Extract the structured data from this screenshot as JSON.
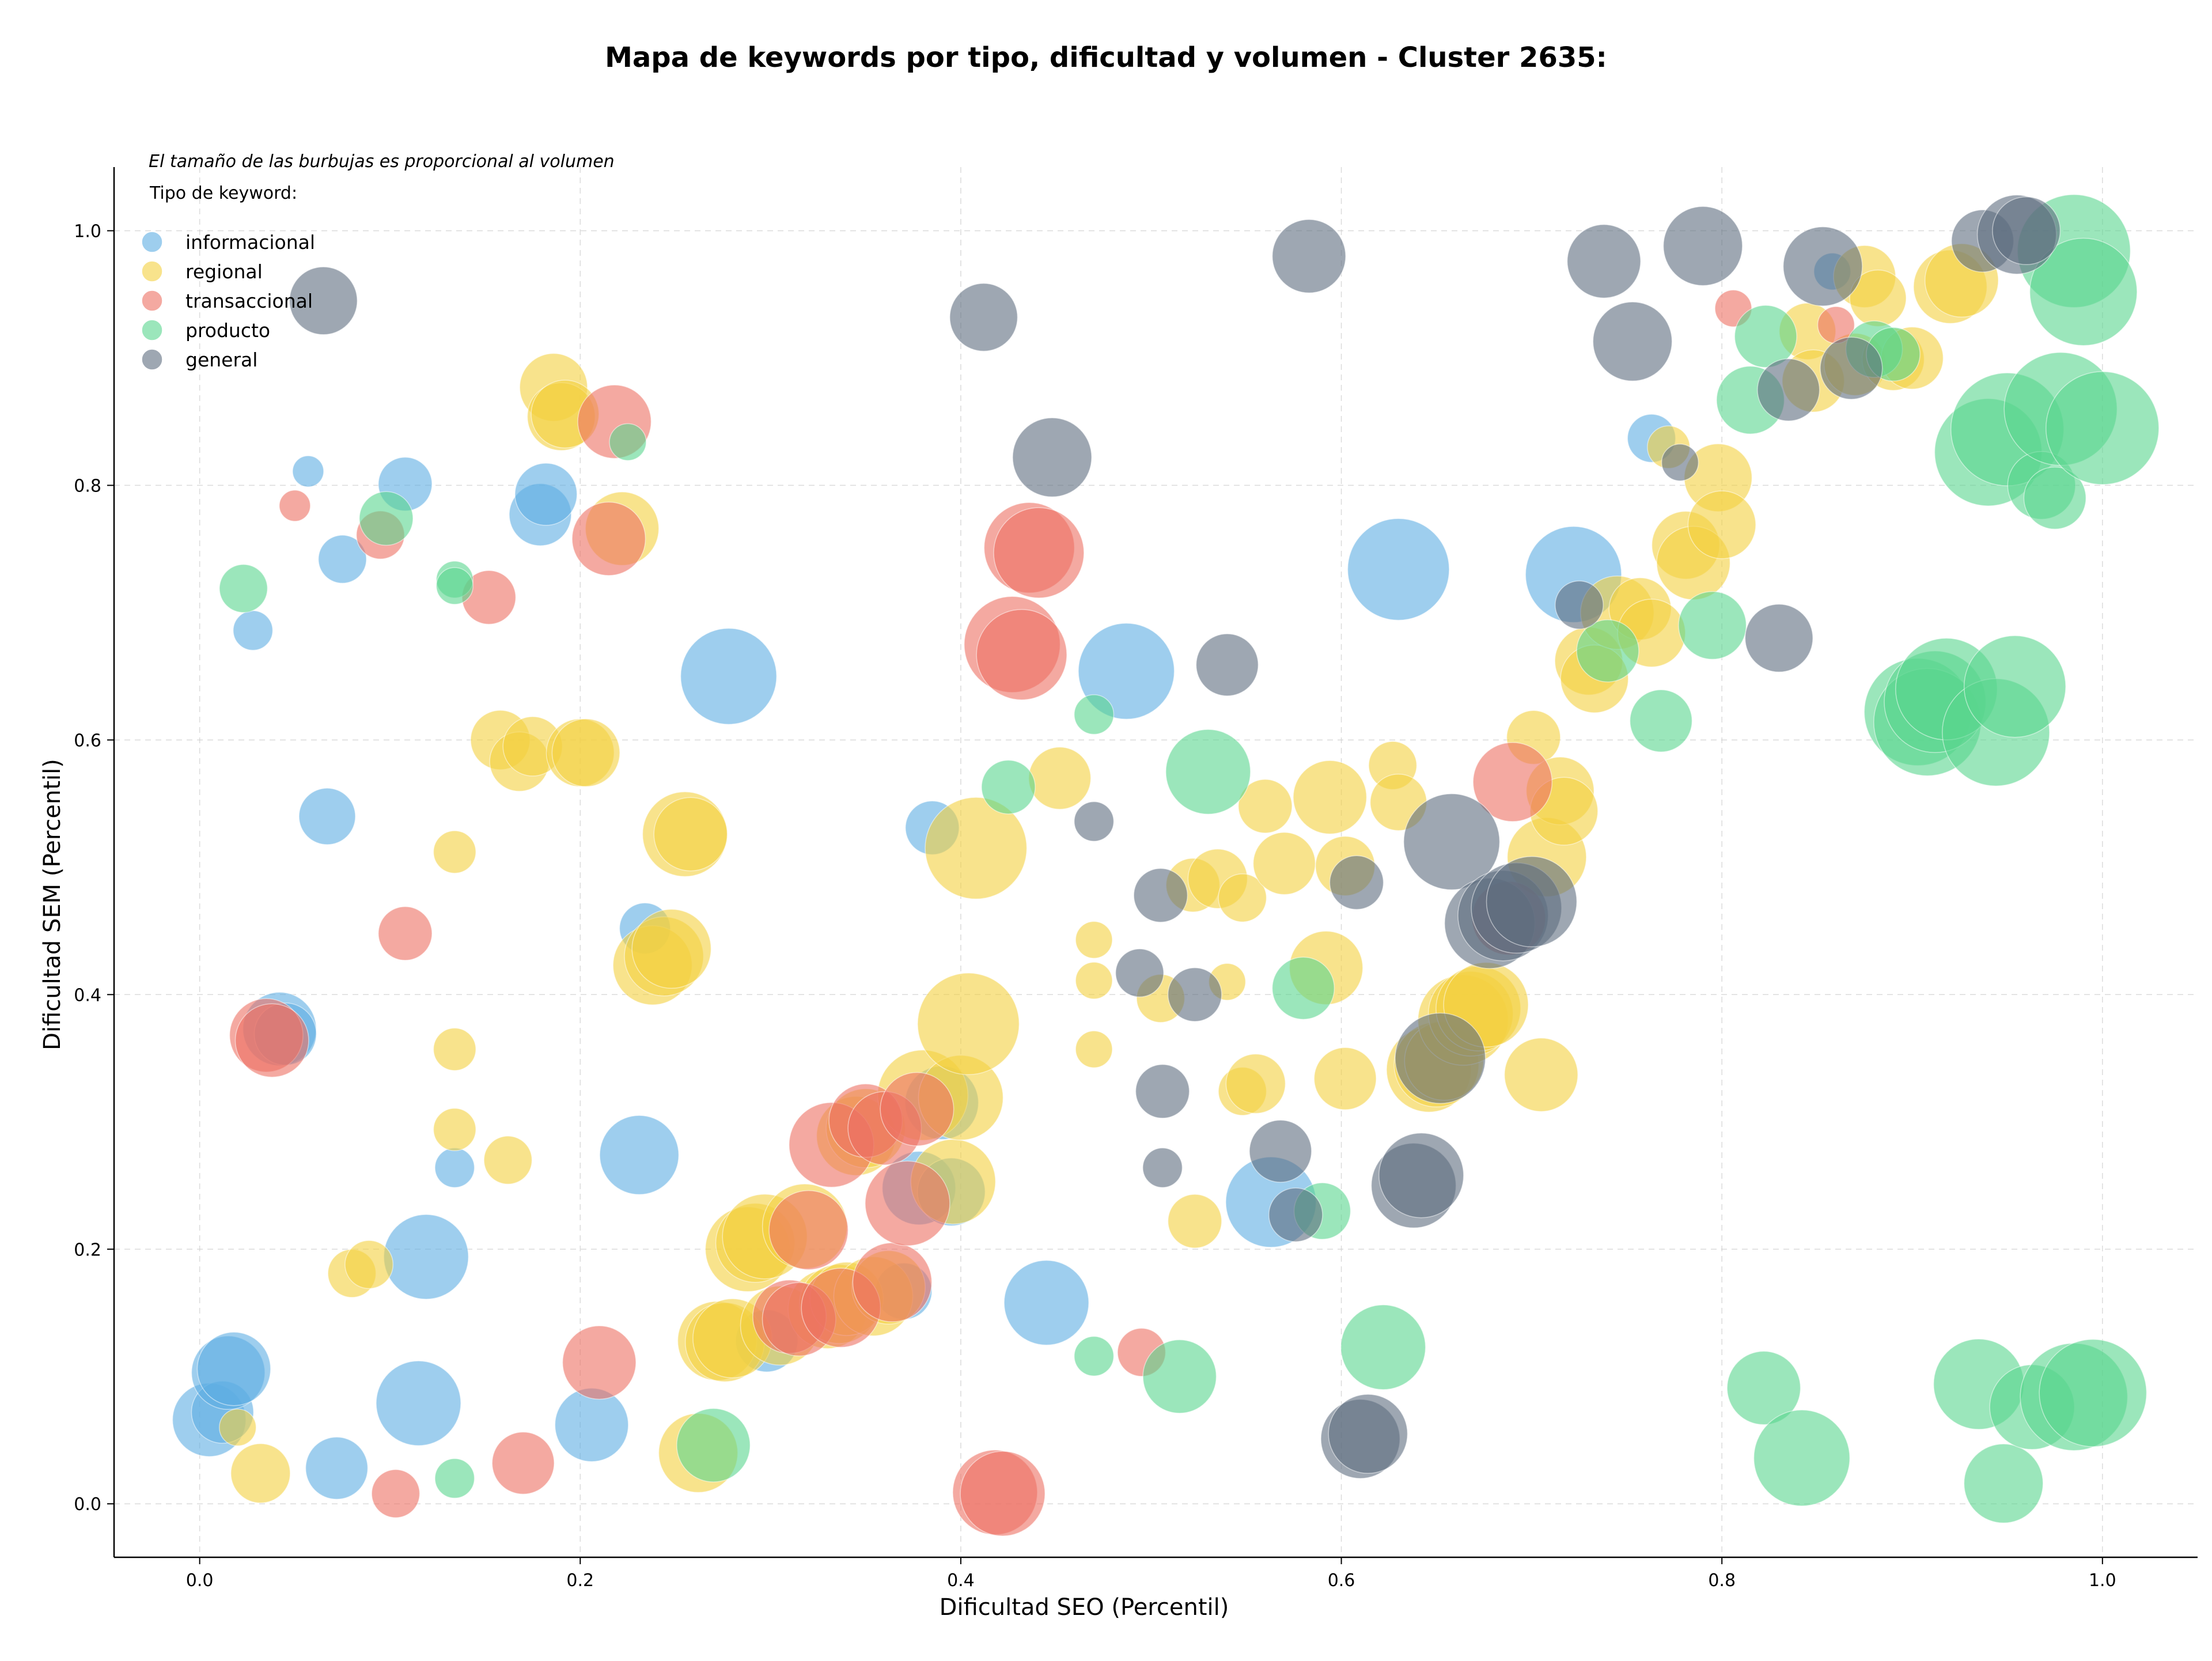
{
  "chart_data": {
    "type": "scatter",
    "title": "Mapa de keywords por tipo, dificultad y volumen - Cluster 2635:",
    "xlabel": "Dificultad SEO (Percentil)",
    "ylabel": "Dificultad SEM (Percentil)",
    "xlim": [
      -0.045,
      1.05
    ],
    "ylim": [
      -0.042,
      1.05
    ],
    "xticks": [
      0.0,
      0.2,
      0.4,
      0.6,
      0.8,
      1.0
    ],
    "yticks": [
      0.0,
      0.2,
      0.4,
      0.6,
      0.8,
      1.0
    ],
    "tick_labels_x": [
      "0.0",
      "0.2",
      "0.4",
      "0.6",
      "0.8",
      "1.0"
    ],
    "tick_labels_y": [
      "0.0",
      "0.2",
      "0.4",
      "0.6",
      "0.8",
      "1.0"
    ],
    "annotation": "El tamaño de las burbujas es proporcional al volumen",
    "legend_title": "Tipo de keyword:",
    "legend_position": "top-left",
    "grid": true,
    "series": [
      {
        "name": "informacional",
        "color": "#5dade2",
        "points": [
          [
            0.005,
            0.066,
            26
          ],
          [
            0.012,
            0.072,
            22
          ],
          [
            0.015,
            0.103,
            26
          ],
          [
            0.018,
            0.106,
            26
          ],
          [
            0.028,
            0.686,
            14
          ],
          [
            0.042,
            0.373,
            26
          ],
          [
            0.045,
            0.369,
            22
          ],
          [
            0.057,
            0.811,
            11
          ],
          [
            0.067,
            0.54,
            20
          ],
          [
            0.072,
            0.028,
            22
          ],
          [
            0.075,
            0.742,
            17
          ],
          [
            0.108,
            0.801,
            19
          ],
          [
            0.115,
            0.079,
            30
          ],
          [
            0.119,
            0.194,
            30
          ],
          [
            0.134,
            0.264,
            14
          ],
          [
            0.179,
            0.777,
            22
          ],
          [
            0.182,
            0.793,
            22
          ],
          [
            0.206,
            0.062,
            26
          ],
          [
            0.231,
            0.274,
            28
          ],
          [
            0.234,
            0.452,
            18
          ],
          [
            0.278,
            0.65,
            34
          ],
          [
            0.298,
            0.128,
            22
          ],
          [
            0.37,
            0.167,
            20
          ],
          [
            0.378,
            0.248,
            26
          ],
          [
            0.385,
            0.531,
            19
          ],
          [
            0.39,
            0.315,
            26
          ],
          [
            0.395,
            0.245,
            24
          ],
          [
            0.445,
            0.158,
            30
          ],
          [
            0.487,
            0.654,
            34
          ],
          [
            0.563,
            0.237,
            32
          ],
          [
            0.63,
            0.734,
            36
          ],
          [
            0.722,
            0.73,
            34
          ],
          [
            0.763,
            0.837,
            17
          ],
          [
            0.858,
            0.968,
            13
          ]
        ]
      },
      {
        "name": "regional",
        "color": "#f4d03f",
        "points": [
          [
            0.02,
            0.06,
            13
          ],
          [
            0.032,
            0.024,
            21
          ],
          [
            0.08,
            0.181,
            17
          ],
          [
            0.089,
            0.188,
            17
          ],
          [
            0.134,
            0.512,
            15
          ],
          [
            0.134,
            0.357,
            15
          ],
          [
            0.134,
            0.294,
            15
          ],
          [
            0.158,
            0.6,
            21
          ],
          [
            0.162,
            0.27,
            17
          ],
          [
            0.168,
            0.583,
            21
          ],
          [
            0.175,
            0.595,
            21
          ],
          [
            0.186,
            0.877,
            24
          ],
          [
            0.19,
            0.854,
            24
          ],
          [
            0.192,
            0.856,
            24
          ],
          [
            0.2,
            0.59,
            24
          ],
          [
            0.203,
            0.59,
            24
          ],
          [
            0.222,
            0.766,
            26
          ],
          [
            0.238,
            0.423,
            28
          ],
          [
            0.244,
            0.43,
            28
          ],
          [
            0.248,
            0.436,
            28
          ],
          [
            0.255,
            0.526,
            30
          ],
          [
            0.258,
            0.526,
            26
          ],
          [
            0.262,
            0.04,
            28
          ],
          [
            0.272,
            0.128,
            28
          ],
          [
            0.276,
            0.127,
            28
          ],
          [
            0.28,
            0.13,
            28
          ],
          [
            0.288,
            0.2,
            30
          ],
          [
            0.292,
            0.205,
            28
          ],
          [
            0.297,
            0.21,
            30
          ],
          [
            0.305,
            0.14,
            28
          ],
          [
            0.318,
            0.218,
            30
          ],
          [
            0.33,
            0.153,
            28
          ],
          [
            0.336,
            0.157,
            28
          ],
          [
            0.34,
            0.161,
            26
          ],
          [
            0.345,
            0.289,
            28
          ],
          [
            0.35,
            0.295,
            28
          ],
          [
            0.354,
            0.163,
            28
          ],
          [
            0.362,
            0.17,
            26
          ],
          [
            0.38,
            0.321,
            32
          ],
          [
            0.396,
            0.253,
            30
          ],
          [
            0.4,
            0.319,
            30
          ],
          [
            0.404,
            0.377,
            36
          ],
          [
            0.408,
            0.515,
            36
          ],
          [
            0.452,
            0.57,
            22
          ],
          [
            0.47,
            0.443,
            13
          ],
          [
            0.47,
            0.411,
            13
          ],
          [
            0.47,
            0.357,
            13
          ],
          [
            0.505,
            0.397,
            17
          ],
          [
            0.522,
            0.486,
            19
          ],
          [
            0.523,
            0.222,
            19
          ],
          [
            0.535,
            0.491,
            21
          ],
          [
            0.54,
            0.41,
            13
          ],
          [
            0.548,
            0.324,
            17
          ],
          [
            0.548,
            0.476,
            17
          ],
          [
            0.555,
            0.33,
            21
          ],
          [
            0.56,
            0.548,
            19
          ],
          [
            0.57,
            0.503,
            22
          ],
          [
            0.592,
            0.421,
            26
          ],
          [
            0.594,
            0.555,
            26
          ],
          [
            0.602,
            0.334,
            22
          ],
          [
            0.602,
            0.501,
            21
          ],
          [
            0.627,
            0.58,
            17
          ],
          [
            0.63,
            0.551,
            20
          ],
          [
            0.646,
            0.341,
            30
          ],
          [
            0.65,
            0.345,
            30
          ],
          [
            0.654,
            0.348,
            28
          ],
          [
            0.664,
            0.38,
            32
          ],
          [
            0.668,
            0.385,
            30
          ],
          [
            0.672,
            0.389,
            30
          ],
          [
            0.676,
            0.392,
            30
          ],
          [
            0.701,
            0.602,
            19
          ],
          [
            0.705,
            0.337,
            26
          ],
          [
            0.708,
            0.508,
            28
          ],
          [
            0.715,
            0.56,
            24
          ],
          [
            0.717,
            0.544,
            24
          ],
          [
            0.73,
            0.662,
            24
          ],
          [
            0.733,
            0.648,
            24
          ],
          [
            0.745,
            0.7,
            26
          ],
          [
            0.757,
            0.703,
            22
          ],
          [
            0.763,
            0.684,
            24
          ],
          [
            0.772,
            0.83,
            15
          ],
          [
            0.781,
            0.753,
            24
          ],
          [
            0.785,
            0.739,
            26
          ],
          [
            0.798,
            0.806,
            24
          ],
          [
            0.8,
            0.769,
            24
          ],
          [
            0.845,
            0.921,
            20
          ],
          [
            0.848,
            0.882,
            22
          ],
          [
            0.87,
            0.895,
            22
          ],
          [
            0.875,
            0.964,
            22
          ],
          [
            0.882,
            0.947,
            20
          ],
          [
            0.89,
            0.899,
            22
          ],
          [
            0.9,
            0.9,
            22
          ],
          [
            0.92,
            0.956,
            26
          ],
          [
            0.926,
            0.961,
            26
          ]
        ]
      },
      {
        "name": "transaccional",
        "color": "#ec7063",
        "points": [
          [
            0.035,
            0.368,
            26
          ],
          [
            0.038,
            0.364,
            26
          ],
          [
            0.05,
            0.784,
            11
          ],
          [
            0.095,
            0.761,
            17
          ],
          [
            0.103,
            0.008,
            17
          ],
          [
            0.108,
            0.448,
            19
          ],
          [
            0.152,
            0.712,
            19
          ],
          [
            0.17,
            0.032,
            22
          ],
          [
            0.21,
            0.111,
            26
          ],
          [
            0.215,
            0.758,
            26
          ],
          [
            0.218,
            0.85,
            26
          ],
          [
            0.31,
            0.147,
            26
          ],
          [
            0.315,
            0.145,
            26
          ],
          [
            0.32,
            0.215,
            28
          ],
          [
            0.332,
            0.282,
            30
          ],
          [
            0.337,
            0.154,
            28
          ],
          [
            0.35,
            0.301,
            26
          ],
          [
            0.36,
            0.295,
            26
          ],
          [
            0.364,
            0.174,
            28
          ],
          [
            0.372,
            0.236,
            30
          ],
          [
            0.377,
            0.31,
            26
          ],
          [
            0.418,
            0.009,
            30
          ],
          [
            0.422,
            0.008,
            30
          ],
          [
            0.427,
            0.675,
            34
          ],
          [
            0.432,
            0.667,
            32
          ],
          [
            0.436,
            0.751,
            32
          ],
          [
            0.441,
            0.747,
            32
          ],
          [
            0.495,
            0.119,
            17
          ],
          [
            0.69,
            0.567,
            28
          ],
          [
            0.688,
            0.46,
            26
          ],
          [
            0.806,
            0.939,
            13
          ],
          [
            0.86,
            0.926,
            13
          ]
        ]
      },
      {
        "name": "producto",
        "color": "#58d68d",
        "points": [
          [
            0.023,
            0.719,
            17
          ],
          [
            0.098,
            0.774,
            19
          ],
          [
            0.134,
            0.726,
            13
          ],
          [
            0.134,
            0.721,
            13
          ],
          [
            0.134,
            0.02,
            14
          ],
          [
            0.225,
            0.834,
            13
          ],
          [
            0.27,
            0.046,
            26
          ],
          [
            0.425,
            0.563,
            19
          ],
          [
            0.47,
            0.62,
            14
          ],
          [
            0.47,
            0.116,
            14
          ],
          [
            0.515,
            0.1,
            26
          ],
          [
            0.53,
            0.575,
            30
          ],
          [
            0.58,
            0.405,
            22
          ],
          [
            0.59,
            0.23,
            20
          ],
          [
            0.622,
            0.123,
            30
          ],
          [
            0.74,
            0.67,
            22
          ],
          [
            0.768,
            0.615,
            22
          ],
          [
            0.795,
            0.69,
            24
          ],
          [
            0.815,
            0.867,
            24
          ],
          [
            0.822,
            0.091,
            26
          ],
          [
            0.823,
            0.917,
            22
          ],
          [
            0.842,
            0.036,
            34
          ],
          [
            0.88,
            0.907,
            20
          ],
          [
            0.89,
            0.903,
            19
          ],
          [
            0.903,
            0.622,
            38
          ],
          [
            0.908,
            0.614,
            38
          ],
          [
            0.912,
            0.63,
            36
          ],
          [
            0.918,
            0.64,
            36
          ],
          [
            0.935,
            0.094,
            32
          ],
          [
            0.94,
            0.826,
            38
          ],
          [
            0.944,
            0.606,
            38
          ],
          [
            0.948,
            0.016,
            28
          ],
          [
            0.95,
            0.844,
            40
          ],
          [
            0.954,
            0.642,
            36
          ],
          [
            0.963,
            0.076,
            30
          ],
          [
            0.968,
            0.8,
            24
          ],
          [
            0.975,
            0.79,
            22
          ],
          [
            0.978,
            0.86,
            40
          ],
          [
            0.985,
            0.084,
            38
          ],
          [
            0.985,
            0.984,
            40
          ],
          [
            0.99,
            0.952,
            38
          ],
          [
            0.995,
            0.087,
            38
          ],
          [
            1.0,
            0.845,
            40
          ]
        ]
      },
      {
        "name": "general",
        "color": "#5d6d7e",
        "points": [
          [
            0.065,
            0.945,
            24
          ],
          [
            0.412,
            0.932,
            24
          ],
          [
            0.448,
            0.822,
            28
          ],
          [
            0.47,
            0.536,
            14
          ],
          [
            0.494,
            0.417,
            17
          ],
          [
            0.505,
            0.478,
            19
          ],
          [
            0.506,
            0.324,
            19
          ],
          [
            0.506,
            0.264,
            14
          ],
          [
            0.523,
            0.4,
            19
          ],
          [
            0.54,
            0.659,
            22
          ],
          [
            0.568,
            0.277,
            22
          ],
          [
            0.576,
            0.227,
            19
          ],
          [
            0.583,
            0.98,
            26
          ],
          [
            0.608,
            0.488,
            19
          ],
          [
            0.61,
            0.051,
            28
          ],
          [
            0.614,
            0.055,
            28
          ],
          [
            0.638,
            0.25,
            30
          ],
          [
            0.642,
            0.258,
            30
          ],
          [
            0.652,
            0.35,
            32
          ],
          [
            0.658,
            0.52,
            34
          ],
          [
            0.678,
            0.456,
            32
          ],
          [
            0.685,
            0.462,
            32
          ],
          [
            0.692,
            0.468,
            32
          ],
          [
            0.7,
            0.473,
            32
          ],
          [
            0.725,
            0.706,
            17
          ],
          [
            0.738,
            0.976,
            26
          ],
          [
            0.753,
            0.913,
            28
          ],
          [
            0.778,
            0.818,
            13
          ],
          [
            0.79,
            0.988,
            28
          ],
          [
            0.83,
            0.68,
            24
          ],
          [
            0.835,
            0.875,
            22
          ],
          [
            0.853,
            0.972,
            28
          ],
          [
            0.868,
            0.892,
            22
          ],
          [
            0.937,
            0.992,
            22
          ],
          [
            0.955,
            0.997,
            28
          ],
          [
            0.96,
            1.0,
            24
          ]
        ]
      }
    ]
  }
}
